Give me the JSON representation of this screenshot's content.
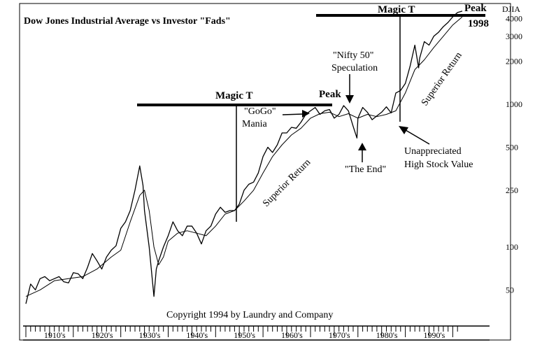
{
  "chart_data": {
    "type": "line",
    "title": "Dow Jones Industrial Average vs Investor \"Fads\"",
    "ylabel": "DJIA",
    "yscale": "log",
    "ylim": [
      35,
      4200
    ],
    "xlim": [
      1905,
      1997
    ],
    "y_ticks": [
      50,
      100,
      250,
      500,
      1000,
      2000,
      3000,
      4000
    ],
    "y_tick_labels": [
      "50",
      "100",
      "250",
      "500",
      "1000",
      "2000",
      "3000",
      "4000"
    ],
    "x_ticks": [
      1910,
      1920,
      1930,
      1940,
      1950,
      1960,
      1970,
      1980,
      1990
    ],
    "x_tick_labels": [
      "1910's",
      "1920's",
      "1930's",
      "1940's",
      "1950's",
      "1960's",
      "1970's",
      "1980's",
      "1990's"
    ],
    "series": [
      {
        "x": [
          1905,
          1906,
          1907,
          1908,
          1909,
          1910,
          1911,
          1912,
          1913,
          1914,
          1915,
          1916,
          1917,
          1918,
          1919,
          1920,
          1921,
          1922,
          1923,
          1924,
          1925,
          1926,
          1927,
          1928,
          1929,
          1929.7,
          1930,
          1931,
          1932,
          1932.5,
          1933,
          1934,
          1935,
          1936,
          1937,
          1938,
          1939,
          1940,
          1941,
          1942,
          1943,
          1944,
          1945,
          1946,
          1947,
          1948,
          1949,
          1950,
          1951,
          1952,
          1953,
          1954,
          1955,
          1956,
          1957,
          1958,
          1959,
          1960,
          1961,
          1962,
          1963,
          1964,
          1965,
          1966,
          1967,
          1968,
          1969,
          1970,
          1971,
          1972,
          1973,
          1974,
          1974.8,
          1975,
          1976,
          1977,
          1978,
          1979,
          1980,
          1981,
          1982,
          1983,
          1984,
          1985,
          1986,
          1987,
          1987.8,
          1988,
          1989,
          1990,
          1991,
          1992,
          1993,
          1994,
          1995,
          1996,
          1997
        ],
        "y": [
          40,
          55,
          50,
          60,
          62,
          58,
          60,
          62,
          57,
          56,
          66,
          65,
          60,
          72,
          90,
          80,
          70,
          85,
          95,
          102,
          135,
          150,
          180,
          250,
          370,
          270,
          180,
          100,
          45,
          70,
          80,
          100,
          120,
          150,
          130,
          120,
          140,
          140,
          125,
          105,
          130,
          140,
          170,
          190,
          175,
          180,
          180,
          200,
          250,
          275,
          285,
          330,
          430,
          500,
          460,
          520,
          630,
          630,
          690,
          680,
          750,
          850,
          900,
          950,
          850,
          900,
          920,
          800,
          850,
          980,
          900,
          700,
          580,
          800,
          950,
          880,
          780,
          830,
          880,
          960,
          870,
          1200,
          1250,
          1400,
          1850,
          2600,
          1800,
          2100,
          2750,
          2600,
          3000,
          3200,
          3500,
          3750,
          4100,
          4400,
          4500
        ]
      },
      {
        "x": [
          1905,
          1908,
          1911,
          1914,
          1917,
          1920,
          1923,
          1925,
          1927,
          1929,
          1930,
          1931,
          1932,
          1933,
          1934,
          1935,
          1937,
          1939,
          1941,
          1943,
          1945,
          1947,
          1949,
          1951,
          1953,
          1955,
          1957,
          1959,
          1961,
          1963,
          1965,
          1967,
          1969,
          1971,
          1973,
          1975,
          1977,
          1979,
          1981,
          1983,
          1985,
          1987,
          1989,
          1991,
          1993,
          1995,
          1997
        ],
        "y": [
          45,
          50,
          58,
          60,
          62,
          70,
          85,
          95,
          150,
          230,
          250,
          180,
          100,
          75,
          85,
          110,
          125,
          130,
          125,
          120,
          140,
          170,
          180,
          210,
          250,
          330,
          430,
          520,
          610,
          680,
          800,
          860,
          880,
          820,
          860,
          800,
          850,
          820,
          850,
          900,
          1200,
          1750,
          2050,
          2500,
          3000,
          3600,
          4100
        ]
      }
    ],
    "annotations": {
      "magic_t_1": "Magic T",
      "magic_t_2": "Magic T",
      "peak_1": "Peak",
      "peak_2": "Peak",
      "year_1998": "1998",
      "gogo_line1": "\"GoGo\"",
      "gogo_line2": "Mania",
      "nifty_line1": "\"Nifty 50\"",
      "nifty_line2": "Speculation",
      "the_end": "\"The End\"",
      "unappreciated_line1": "Unappreciated",
      "unappreciated_line2": "High Stock Value",
      "superior_return_1": "Superior Return",
      "superior_return_2": "Superior Return",
      "copyright": "Copyright 1994 by Laundry and Company"
    },
    "grid": false,
    "legend": "none"
  }
}
